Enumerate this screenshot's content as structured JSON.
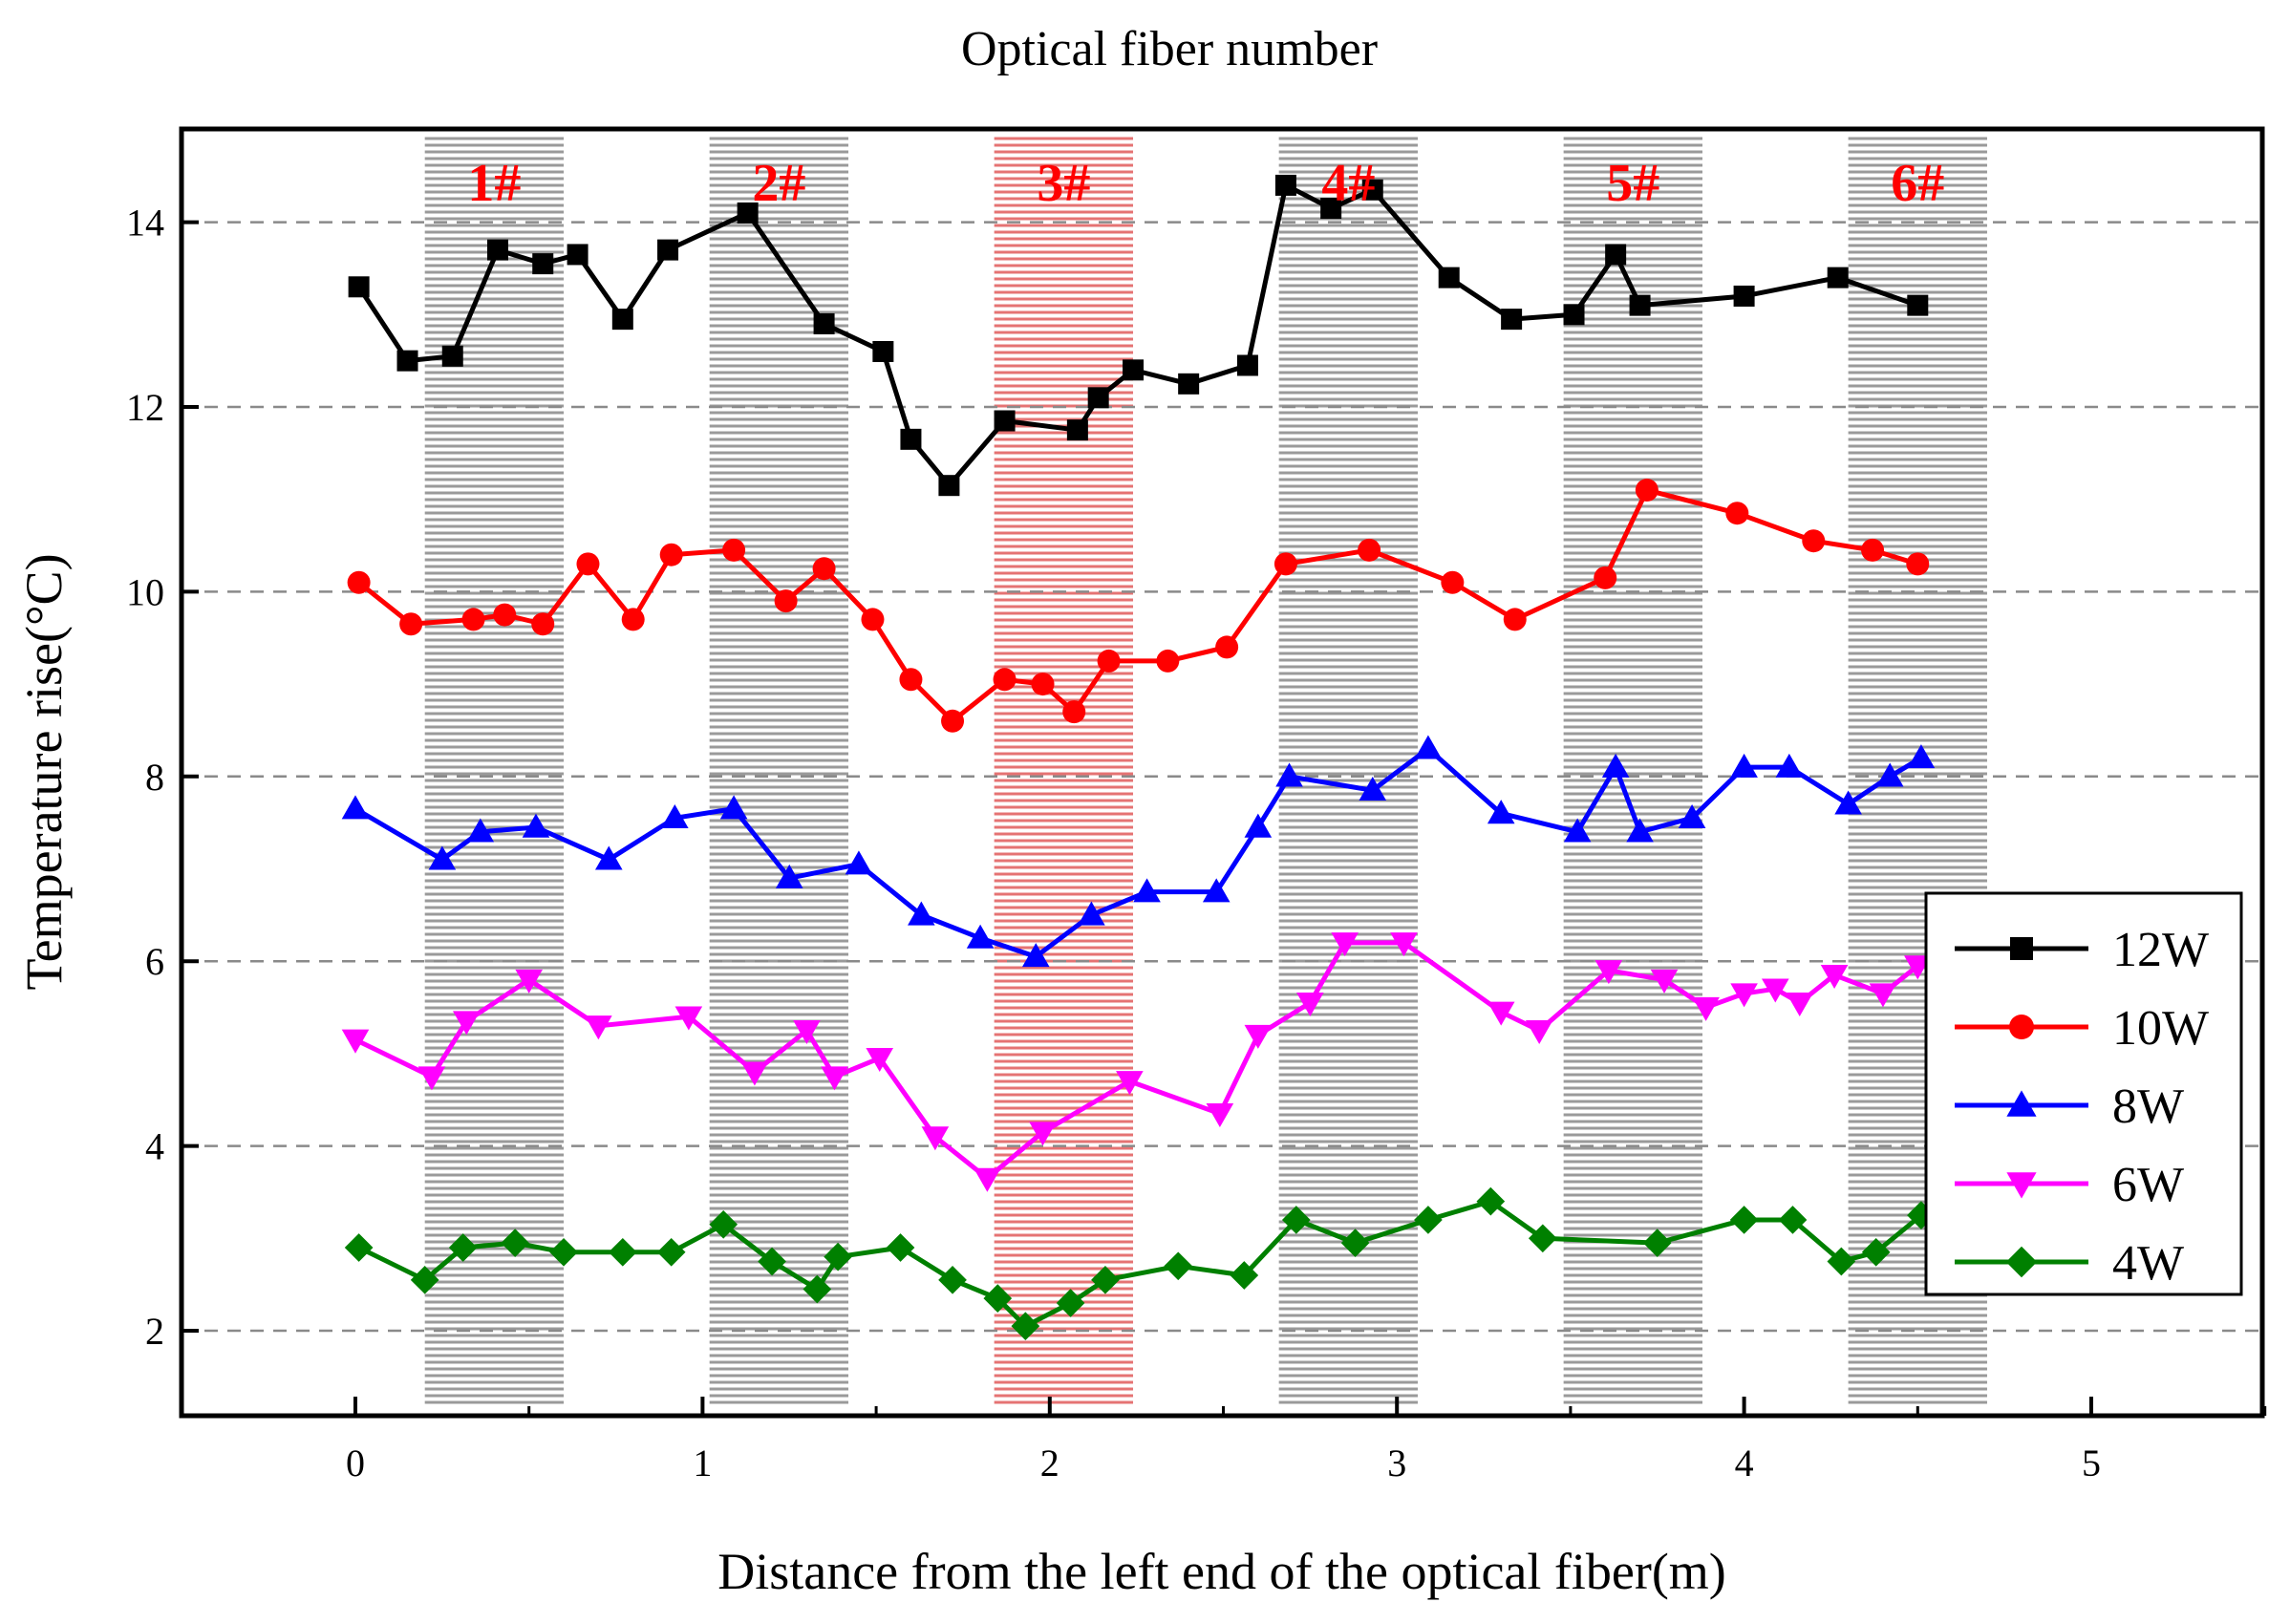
{
  "chart_data": {
    "type": "line",
    "title": "Optical fiber number",
    "xlabel": "Distance from the left end of the optical fiber(m)",
    "ylabel": "Temperature rise(°C)",
    "xlim": [
      -0.5,
      5.5
    ],
    "ylim": [
      1,
      15
    ],
    "xticks": [
      0,
      1,
      2,
      3,
      4,
      5
    ],
    "yticks": [
      2,
      4,
      6,
      8,
      10,
      12,
      14
    ],
    "grid": "dashed horizontal at y ticks",
    "legend_position": "right-lower",
    "fiber_bands": [
      {
        "label": "1#",
        "x_start": 0.2,
        "x_end": 0.6,
        "color": "#9a9a9a"
      },
      {
        "label": "2#",
        "x_start": 1.02,
        "x_end": 1.42,
        "color": "#9a9a9a"
      },
      {
        "label": "3#",
        "x_start": 1.84,
        "x_end": 2.24,
        "color": "#e57373"
      },
      {
        "label": "4#",
        "x_start": 2.66,
        "x_end": 3.06,
        "color": "#9a9a9a"
      },
      {
        "label": "5#",
        "x_start": 3.48,
        "x_end": 3.88,
        "color": "#9a9a9a"
      },
      {
        "label": "6#",
        "x_start": 4.3,
        "x_end": 4.7,
        "color": "#9a9a9a"
      }
    ],
    "band_label_color": "#ff0000",
    "series": [
      {
        "name": "12W",
        "color": "#000000",
        "marker": "square",
        "x": [
          0.01,
          0.15,
          0.28,
          0.41,
          0.54,
          0.64,
          0.77,
          0.9,
          1.13,
          1.35,
          1.52,
          1.6,
          1.71,
          1.87,
          2.08,
          2.14,
          2.24,
          2.4,
          2.57,
          2.68,
          2.81,
          2.93,
          3.15,
          3.33,
          3.51,
          3.63,
          3.7,
          4.0,
          4.27,
          4.5
        ],
        "values": [
          13.3,
          12.5,
          12.55,
          13.7,
          13.55,
          13.65,
          12.95,
          13.7,
          14.1,
          12.9,
          12.6,
          11.65,
          11.15,
          11.85,
          11.75,
          12.1,
          12.4,
          12.25,
          12.45,
          14.4,
          14.15,
          14.35,
          13.4,
          12.95,
          13.0,
          13.65,
          13.1,
          13.2,
          13.4,
          13.1
        ]
      },
      {
        "name": "10W",
        "color": "#ff0000",
        "marker": "circle",
        "x": [
          0.01,
          0.16,
          0.34,
          0.43,
          0.54,
          0.67,
          0.8,
          0.91,
          1.09,
          1.24,
          1.35,
          1.49,
          1.6,
          1.72,
          1.87,
          1.98,
          2.07,
          2.17,
          2.34,
          2.51,
          2.68,
          2.92,
          3.16,
          3.34,
          3.6,
          3.72,
          3.98,
          4.2,
          4.37,
          4.5
        ],
        "values": [
          10.1,
          9.65,
          9.7,
          9.75,
          9.65,
          10.3,
          9.7,
          10.4,
          10.45,
          9.9,
          10.25,
          9.7,
          9.05,
          8.6,
          9.05,
          9.0,
          8.7,
          9.25,
          9.25,
          9.4,
          10.3,
          10.45,
          10.1,
          9.7,
          10.15,
          11.1,
          10.85,
          10.55,
          10.45,
          10.3
        ]
      },
      {
        "name": "8W",
        "color": "#0000ff",
        "marker": "triangle-up",
        "x": [
          0.0,
          0.25,
          0.36,
          0.52,
          0.73,
          0.92,
          1.09,
          1.25,
          1.45,
          1.63,
          1.8,
          1.96,
          2.12,
          2.28,
          2.48,
          2.6,
          2.69,
          2.93,
          3.09,
          3.3,
          3.52,
          3.63,
          3.7,
          3.85,
          4.0,
          4.13,
          4.3,
          4.42,
          4.51
        ],
        "values": [
          7.65,
          7.1,
          7.4,
          7.45,
          7.1,
          7.55,
          7.65,
          6.9,
          7.05,
          6.5,
          6.25,
          6.05,
          6.5,
          6.75,
          6.75,
          7.45,
          8.0,
          7.85,
          8.3,
          7.6,
          7.4,
          8.1,
          7.4,
          7.55,
          8.1,
          8.1,
          7.7,
          8.0,
          8.2
        ]
      },
      {
        "name": "6W",
        "color": "#ff00ff",
        "marker": "triangle-down",
        "x": [
          0.0,
          0.22,
          0.32,
          0.5,
          0.7,
          0.96,
          1.15,
          1.3,
          1.38,
          1.51,
          1.67,
          1.82,
          1.98,
          2.23,
          2.49,
          2.6,
          2.75,
          2.85,
          3.02,
          3.3,
          3.41,
          3.61,
          3.77,
          3.89,
          4.0,
          4.09,
          4.16,
          4.26,
          4.4,
          4.5
        ],
        "values": [
          5.15,
          4.75,
          5.35,
          5.8,
          5.3,
          5.4,
          4.8,
          5.25,
          4.75,
          4.95,
          4.1,
          3.65,
          4.15,
          4.7,
          4.35,
          5.2,
          5.55,
          6.2,
          6.2,
          5.45,
          5.25,
          5.9,
          5.8,
          5.5,
          5.65,
          5.7,
          5.55,
          5.85,
          5.65,
          5.95
        ]
      },
      {
        "name": "4W",
        "color": "#008000",
        "marker": "diamond",
        "x": [
          0.01,
          0.2,
          0.31,
          0.46,
          0.6,
          0.77,
          0.91,
          1.06,
          1.2,
          1.33,
          1.39,
          1.57,
          1.72,
          1.85,
          1.93,
          2.06,
          2.16,
          2.37,
          2.56,
          2.71,
          2.88,
          3.09,
          3.27,
          3.42,
          3.75,
          4.0,
          4.14,
          4.28,
          4.38,
          4.51
        ],
        "values": [
          2.9,
          2.55,
          2.9,
          2.95,
          2.85,
          2.85,
          2.85,
          3.15,
          2.75,
          2.45,
          2.8,
          2.9,
          2.55,
          2.35,
          2.05,
          2.3,
          2.55,
          2.7,
          2.6,
          3.2,
          2.95,
          3.2,
          3.4,
          3.0,
          2.95,
          3.2,
          3.2,
          2.75,
          2.85,
          3.25
        ]
      }
    ]
  }
}
